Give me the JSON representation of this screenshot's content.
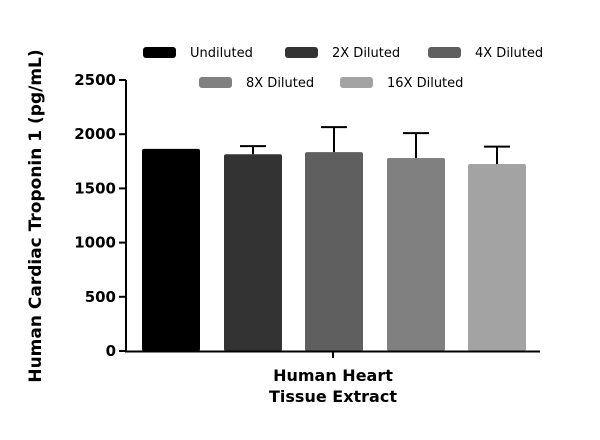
{
  "chart_data": {
    "type": "bar",
    "title": "",
    "xlabel": "Human Heart Tissue Extract",
    "xlabel_lines": [
      "Human Heart",
      "Tissue Extract"
    ],
    "ylabel": "Human Cardiac Troponin 1 (pg/mL)",
    "ylim": [
      0,
      2500
    ],
    "yticks": [
      0,
      500,
      1000,
      1500,
      2000,
      2500
    ],
    "grid": false,
    "legend_position": "top",
    "categories": [
      "Human Heart Tissue Extract"
    ],
    "series": [
      {
        "name": "Undiluted",
        "values": [
          1865
        ],
        "error": [
          0
        ],
        "color": "#000000"
      },
      {
        "name": "2X Diluted",
        "values": [
          1815
        ],
        "error": [
          75
        ],
        "color": "#333333"
      },
      {
        "name": "4X Diluted",
        "values": [
          1835
        ],
        "error": [
          230
        ],
        "color": "#5f5f5f"
      },
      {
        "name": "8X Diluted",
        "values": [
          1780
        ],
        "error": [
          230
        ],
        "color": "#808080"
      },
      {
        "name": "16X Diluted",
        "values": [
          1725
        ],
        "error": [
          160
        ],
        "color": "#a3a3a3"
      }
    ]
  }
}
